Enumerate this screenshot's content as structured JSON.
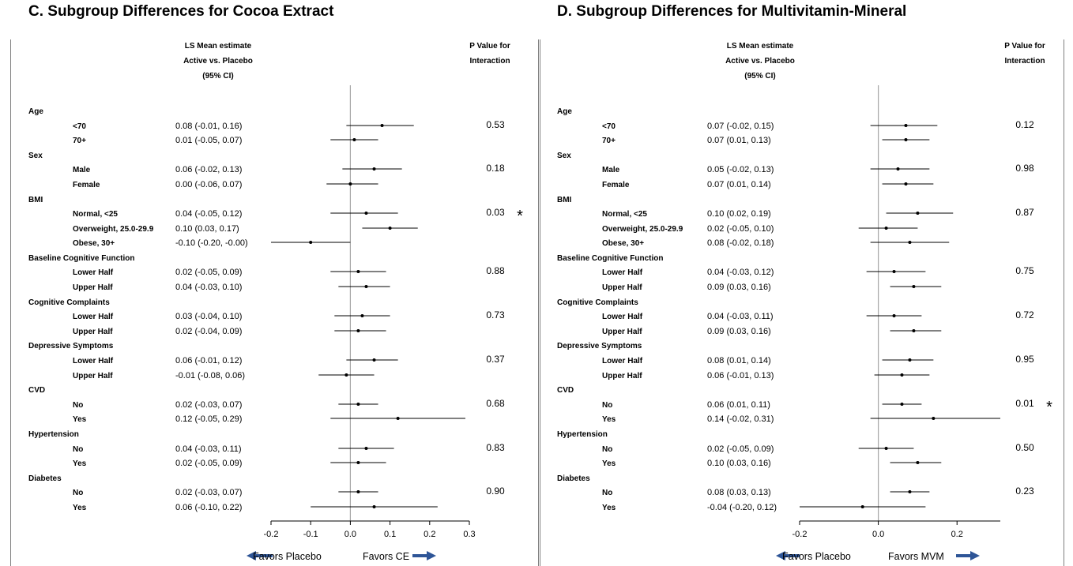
{
  "column_labels": {
    "estimate_header": [
      "LS Mean estimate",
      "Active vs. Placebo",
      "(95% CI)"
    ],
    "pvalue_header": [
      "P Value for",
      "Interaction"
    ],
    "significance_mark": "*"
  },
  "colors": {
    "arrow": "#2e5597",
    "axis": "#000000",
    "zero_line": "#a6a6a6",
    "frame": "#7f7f7f"
  },
  "chart_data": [
    {
      "type": "forest",
      "title": "C.  Subgroup Differences for Cocoa Extract",
      "xlim": [
        -0.2,
        0.3
      ],
      "ticks": [
        "-0.2",
        "-0.1",
        "0.0",
        "0.1",
        "0.2",
        "0.3"
      ],
      "tick_values": [
        -0.2,
        -0.1,
        0.0,
        0.1,
        0.2,
        0.3
      ],
      "left_label": "Favors Placebo",
      "right_label": "Favors CE",
      "groups": [
        {
          "name": "Age",
          "p_value": "0.53",
          "significant": false,
          "rows": [
            {
              "label": "<70",
              "ci_text": "0.08 (-0.01, 0.16)",
              "est": 0.08,
              "lo": -0.01,
              "hi": 0.16
            },
            {
              "label": "70+",
              "ci_text": "0.01 (-0.05, 0.07)",
              "est": 0.01,
              "lo": -0.05,
              "hi": 0.07
            }
          ]
        },
        {
          "name": "Sex",
          "p_value": "0.18",
          "significant": false,
          "rows": [
            {
              "label": "Male",
              "ci_text": "0.06 (-0.02, 0.13)",
              "est": 0.06,
              "lo": -0.02,
              "hi": 0.13
            },
            {
              "label": "Female",
              "ci_text": "0.00 (-0.06, 0.07)",
              "est": 0.0,
              "lo": -0.06,
              "hi": 0.07
            }
          ]
        },
        {
          "name": "BMI",
          "p_value": "0.03",
          "significant": true,
          "rows": [
            {
              "label": "Normal, <25",
              "ci_text": "0.04 (-0.05, 0.12)",
              "est": 0.04,
              "lo": -0.05,
              "hi": 0.12
            },
            {
              "label": "Overweight, 25.0-29.9",
              "ci_text": "0.10 (0.03, 0.17)",
              "est": 0.1,
              "lo": 0.03,
              "hi": 0.17
            },
            {
              "label": "Obese, 30+",
              "ci_text": "-0.10 (-0.20, -0.00)",
              "est": -0.1,
              "lo": -0.2,
              "hi": 0.0
            }
          ]
        },
        {
          "name": "Baseline Cognitive Function",
          "p_value": "0.88",
          "significant": false,
          "rows": [
            {
              "label": "Lower Half",
              "ci_text": "0.02 (-0.05, 0.09)",
              "est": 0.02,
              "lo": -0.05,
              "hi": 0.09
            },
            {
              "label": "Upper Half",
              "ci_text": "0.04 (-0.03, 0.10)",
              "est": 0.04,
              "lo": -0.03,
              "hi": 0.1
            }
          ]
        },
        {
          "name": "Cognitive Complaints",
          "p_value": "0.73",
          "significant": false,
          "rows": [
            {
              "label": "Lower Half",
              "ci_text": "0.03 (-0.04, 0.10)",
              "est": 0.03,
              "lo": -0.04,
              "hi": 0.1
            },
            {
              "label": "Upper Half",
              "ci_text": "0.02 (-0.04, 0.09)",
              "est": 0.02,
              "lo": -0.04,
              "hi": 0.09
            }
          ]
        },
        {
          "name": "Depressive Symptoms",
          "p_value": "0.37",
          "significant": false,
          "rows": [
            {
              "label": "Lower Half",
              "ci_text": "0.06 (-0.01, 0.12)",
              "est": 0.06,
              "lo": -0.01,
              "hi": 0.12
            },
            {
              "label": "Upper Half",
              "ci_text": "-0.01 (-0.08, 0.06)",
              "est": -0.01,
              "lo": -0.08,
              "hi": 0.06
            }
          ]
        },
        {
          "name": "CVD",
          "p_value": "0.68",
          "significant": false,
          "rows": [
            {
              "label": "No",
              "ci_text": "0.02 (-0.03, 0.07)",
              "est": 0.02,
              "lo": -0.03,
              "hi": 0.07
            },
            {
              "label": "Yes",
              "ci_text": "0.12 (-0.05, 0.29)",
              "est": 0.12,
              "lo": -0.05,
              "hi": 0.29
            }
          ]
        },
        {
          "name": "Hypertension",
          "p_value": "0.83",
          "significant": false,
          "rows": [
            {
              "label": "No",
              "ci_text": "0.04 (-0.03, 0.11)",
              "est": 0.04,
              "lo": -0.03,
              "hi": 0.11
            },
            {
              "label": "Yes",
              "ci_text": "0.02 (-0.05, 0.09)",
              "est": 0.02,
              "lo": -0.05,
              "hi": 0.09
            }
          ]
        },
        {
          "name": "Diabetes",
          "p_value": "0.90",
          "significant": false,
          "rows": [
            {
              "label": "No",
              "ci_text": "0.02 (-0.03, 0.07)",
              "est": 0.02,
              "lo": -0.03,
              "hi": 0.07
            },
            {
              "label": "Yes",
              "ci_text": "0.06 (-0.10, 0.22)",
              "est": 0.06,
              "lo": -0.1,
              "hi": 0.22
            }
          ]
        }
      ]
    },
    {
      "type": "forest",
      "title": "D.  Subgroup Differences for Multivitamin-Mineral",
      "xlim": [
        -0.2,
        0.31
      ],
      "ticks": [
        "-0.2",
        "0.0",
        "0.2"
      ],
      "tick_values": [
        -0.2,
        0.0,
        0.2
      ],
      "left_label": "Favors Placebo",
      "right_label": "Favors MVM",
      "groups": [
        {
          "name": "Age",
          "p_value": "0.12",
          "significant": false,
          "rows": [
            {
              "label": "<70",
              "ci_text": "0.07 (-0.02, 0.15)",
              "est": 0.07,
              "lo": -0.02,
              "hi": 0.15
            },
            {
              "label": "70+",
              "ci_text": "0.07 (0.01, 0.13)",
              "est": 0.07,
              "lo": 0.01,
              "hi": 0.13
            }
          ]
        },
        {
          "name": "Sex",
          "p_value": "0.98",
          "significant": false,
          "rows": [
            {
              "label": "Male",
              "ci_text": "0.05 (-0.02, 0.13)",
              "est": 0.05,
              "lo": -0.02,
              "hi": 0.13
            },
            {
              "label": "Female",
              "ci_text": "0.07 (0.01, 0.14)",
              "est": 0.07,
              "lo": 0.01,
              "hi": 0.14
            }
          ]
        },
        {
          "name": "BMI",
          "p_value": "0.87",
          "significant": false,
          "rows": [
            {
              "label": "Normal, <25",
              "ci_text": "0.10 (0.02, 0.19)",
              "est": 0.1,
              "lo": 0.02,
              "hi": 0.19
            },
            {
              "label": "Overweight, 25.0-29.9",
              "ci_text": "0.02 (-0.05, 0.10)",
              "est": 0.02,
              "lo": -0.05,
              "hi": 0.1
            },
            {
              "label": "Obese, 30+",
              "ci_text": "0.08 (-0.02, 0.18)",
              "est": 0.08,
              "lo": -0.02,
              "hi": 0.18
            }
          ]
        },
        {
          "name": "Baseline Cognitive Function",
          "p_value": "0.75",
          "significant": false,
          "rows": [
            {
              "label": "Lower Half",
              "ci_text": "0.04 (-0.03, 0.12)",
              "est": 0.04,
              "lo": -0.03,
              "hi": 0.12
            },
            {
              "label": "Upper Half",
              "ci_text": "0.09 (0.03, 0.16)",
              "est": 0.09,
              "lo": 0.03,
              "hi": 0.16
            }
          ]
        },
        {
          "name": "Cognitive Complaints",
          "p_value": "0.72",
          "significant": false,
          "rows": [
            {
              "label": "Lower Half",
              "ci_text": "0.04 (-0.03, 0.11)",
              "est": 0.04,
              "lo": -0.03,
              "hi": 0.11
            },
            {
              "label": "Upper Half",
              "ci_text": "0.09 (0.03, 0.16)",
              "est": 0.09,
              "lo": 0.03,
              "hi": 0.16
            }
          ]
        },
        {
          "name": "Depressive Symptoms",
          "p_value": "0.95",
          "significant": false,
          "rows": [
            {
              "label": "Lower Half",
              "ci_text": "0.08 (0.01, 0.14)",
              "est": 0.08,
              "lo": 0.01,
              "hi": 0.14
            },
            {
              "label": "Upper Half",
              "ci_text": "0.06 (-0.01, 0.13)",
              "est": 0.06,
              "lo": -0.01,
              "hi": 0.13
            }
          ]
        },
        {
          "name": "CVD",
          "p_value": "0.01",
          "significant": true,
          "rows": [
            {
              "label": "No",
              "ci_text": "0.06 (0.01, 0.11)",
              "est": 0.06,
              "lo": 0.01,
              "hi": 0.11
            },
            {
              "label": "Yes",
              "ci_text": "0.14 (-0.02, 0.31)",
              "est": 0.14,
              "lo": -0.02,
              "hi": 0.31
            }
          ]
        },
        {
          "name": "Hypertension",
          "p_value": "0.50",
          "significant": false,
          "rows": [
            {
              "label": "No",
              "ci_text": "0.02 (-0.05, 0.09)",
              "est": 0.02,
              "lo": -0.05,
              "hi": 0.09
            },
            {
              "label": "Yes",
              "ci_text": "0.10 (0.03, 0.16)",
              "est": 0.1,
              "lo": 0.03,
              "hi": 0.16
            }
          ]
        },
        {
          "name": "Diabetes",
          "p_value": "0.23",
          "significant": false,
          "rows": [
            {
              "label": "No",
              "ci_text": "0.08 (0.03, 0.13)",
              "est": 0.08,
              "lo": 0.03,
              "hi": 0.13
            },
            {
              "label": "Yes",
              "ci_text": "-0.04 (-0.20, 0.12)",
              "est": -0.04,
              "lo": -0.2,
              "hi": 0.12
            }
          ]
        }
      ]
    }
  ]
}
